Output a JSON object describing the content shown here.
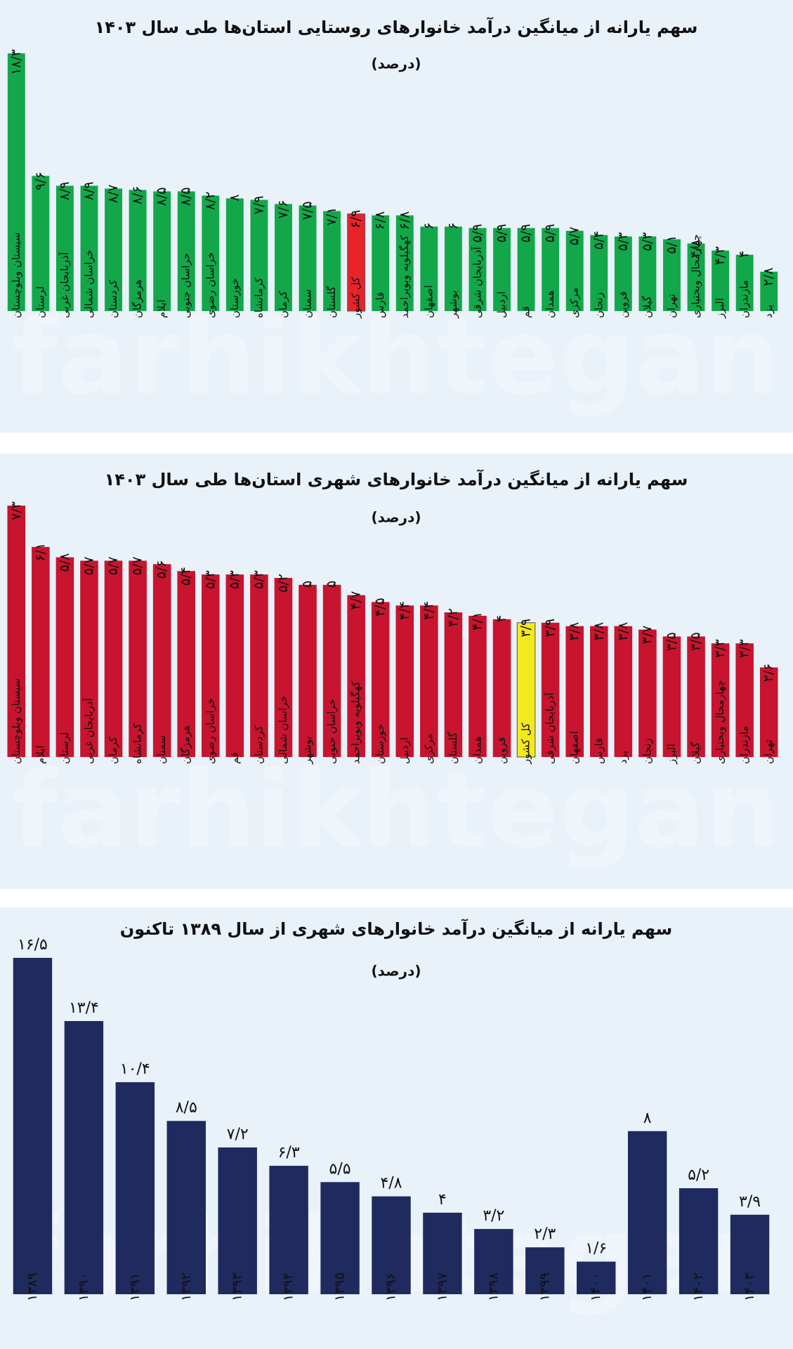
{
  "watermark": "farhikhtegan",
  "chart_data": [
    {
      "type": "bar",
      "title": "سهم یارانه از میانگین درآمد خانوارهای روستایی استان‌ها طی سال ۱۴۰۳",
      "subtitle": "(درصد)",
      "categories": [
        "سیستان وبلوچستان",
        "لرستان",
        "آذربایجان غربی",
        "خراسان شمالی",
        "کردستان",
        "هرمزگان",
        "ایلام",
        "خراسان جنوبی",
        "خراسان رضوی",
        "خوزستان",
        "کرمانشاه",
        "کرمان",
        "سمنان",
        "گلستان",
        "کل کشور",
        "فارس",
        "کهگیلویه وبویراحمد",
        "اصفهان",
        "بوشهر",
        "آذربایجان شرقی",
        "اردبیل",
        "قم",
        "همدان",
        "مرکزی",
        "زنجان",
        "قزوین",
        "گیلان",
        "تهران",
        "چهارمحال وبختیاری",
        "البرز",
        "مازندران",
        "یزد"
      ],
      "values": [
        18.3,
        9.6,
        8.9,
        8.9,
        8.7,
        8.6,
        8.5,
        8.5,
        8.2,
        8,
        7.9,
        7.6,
        7.5,
        7.1,
        6.9,
        6.8,
        6.8,
        6,
        6,
        5.9,
        5.9,
        5.9,
        5.9,
        5.7,
        5.4,
        5.3,
        5.3,
        5.1,
        4.8,
        4.3,
        4,
        2.8
      ],
      "value_labels": [
        "۱۸/۳",
        "۹/۶",
        "۸/۹",
        "۸/۹",
        "۸/۷",
        "۸/۶",
        "۸/۵",
        "۸/۵",
        "۸/۲",
        "۸",
        "۷/۹",
        "۷/۶",
        "۷/۵",
        "۷/۱",
        "۶/۹",
        "۶/۸",
        "۶/۸",
        "۶",
        "۶",
        "۵/۹",
        "۵/۹",
        "۵/۹",
        "۵/۹",
        "۵/۷",
        "۵/۴",
        "۵/۳",
        "۵/۳",
        "۵/۱",
        "۴/۸",
        "۴/۳",
        "۴",
        "۲/۸"
      ],
      "colors": [
        "#12a84a",
        "#12a84a",
        "#12a84a",
        "#12a84a",
        "#12a84a",
        "#12a84a",
        "#12a84a",
        "#12a84a",
        "#12a84a",
        "#12a84a",
        "#12a84a",
        "#12a84a",
        "#12a84a",
        "#12a84a",
        "#e8232a",
        "#12a84a",
        "#12a84a",
        "#12a84a",
        "#12a84a",
        "#12a84a",
        "#12a84a",
        "#12a84a",
        "#12a84a",
        "#12a84a",
        "#12a84a",
        "#12a84a",
        "#12a84a",
        "#12a84a",
        "#12a84a",
        "#12a84a",
        "#12a84a",
        "#12a84a"
      ]
    },
    {
      "type": "bar",
      "title": "سهم یارانه از میانگین درآمد خانوارهای شهری استان‌ها طی سال ۱۴۰۳",
      "subtitle": "(درصد)",
      "categories": [
        "سیستان وبلوچستان",
        "ایلام",
        "لرستان",
        "آذربایجان غربی",
        "کرمان",
        "کرمانشاه",
        "سمنان",
        "هرمزگان",
        "خراسان رضوی",
        "قم",
        "کردستان",
        "خراسان شمالی",
        "بوشهر",
        "خراسان جنوبی",
        "کهگیلویه وبویراحمد",
        "خوزستان",
        "اردبیل",
        "مرکزی",
        "گلستان",
        "همدان",
        "قزوین",
        "کل کشور",
        "آذربایجان شرقی",
        "اصفهان",
        "فارس",
        "یزد",
        "زنجان",
        "البرز",
        "گیلان",
        "چهارمحال وبختیاری",
        "مازندران",
        "تهران"
      ],
      "values": [
        7.3,
        6.1,
        5.8,
        5.7,
        5.7,
        5.7,
        5.6,
        5.4,
        5.3,
        5.3,
        5.3,
        5.2,
        5,
        5,
        4.7,
        4.5,
        4.4,
        4.4,
        4.2,
        4.1,
        4,
        3.9,
        3.9,
        3.8,
        3.8,
        3.8,
        3.7,
        3.5,
        3.5,
        3.3,
        3.3,
        2.6
      ],
      "value_labels": [
        "۷/۳",
        "۶/۱",
        "۵/۸",
        "۵/۷",
        "۵/۷",
        "۵/۷",
        "۵/۶",
        "۵/۴",
        "۵/۳",
        "۵/۳",
        "۵/۳",
        "۵/۲",
        "۵",
        "۵",
        "۴/۷",
        "۴/۵",
        "۴/۴",
        "۴/۴",
        "۴/۲",
        "۴/۱",
        "۴",
        "۳/۹",
        "۳/۹",
        "۳/۸",
        "۳/۸",
        "۳/۸",
        "۳/۷",
        "۳/۵",
        "۳/۵",
        "۳/۳",
        "۳/۳",
        "۲/۶"
      ],
      "colors": [
        "#c8142e",
        "#c8142e",
        "#c8142e",
        "#c8142e",
        "#c8142e",
        "#c8142e",
        "#c8142e",
        "#c8142e",
        "#c8142e",
        "#c8142e",
        "#c8142e",
        "#c8142e",
        "#c8142e",
        "#c8142e",
        "#c8142e",
        "#c8142e",
        "#c8142e",
        "#c8142e",
        "#c8142e",
        "#c8142e",
        "#c8142e",
        "#f4e91c",
        "#c8142e",
        "#c8142e",
        "#c8142e",
        "#c8142e",
        "#c8142e",
        "#c8142e",
        "#c8142e",
        "#c8142e",
        "#c8142e",
        "#c8142e"
      ]
    },
    {
      "type": "bar",
      "title": "سهم یارانه از میانگین درآمد خانوارهای شهری از سال ۱۳۸۹ تاکنون",
      "subtitle": "(درصد)",
      "categories": [
        "۱۳۸۹",
        "۱۳۹۰",
        "۱۳۹۱",
        "۱۳۹۲",
        "۱۳۹۳",
        "۱۳۹۴",
        "۱۳۹۵",
        "۱۳۹۶",
        "۱۳۹۷",
        "۱۳۹۸",
        "۱۳۹۹",
        "۱۴۰۰",
        "۱۴۰۱",
        "۱۴۰۲",
        "۱۴۰۳"
      ],
      "values": [
        16.5,
        13.4,
        10.4,
        8.5,
        7.2,
        6.3,
        5.5,
        4.8,
        4,
        3.2,
        2.3,
        1.6,
        8,
        5.2,
        3.9
      ],
      "value_labels": [
        "۱۶/۵",
        "۱۳/۴",
        "۱۰/۴",
        "۸/۵",
        "۷/۲",
        "۶/۳",
        "۵/۵",
        "۴/۸",
        "۴",
        "۳/۲",
        "۲/۳",
        "۱/۶",
        "۸",
        "۵/۲",
        "۳/۹"
      ],
      "colors": [
        "#1f2a5e",
        "#1f2a5e",
        "#1f2a5e",
        "#1f2a5e",
        "#1f2a5e",
        "#1f2a5e",
        "#1f2a5e",
        "#1f2a5e",
        "#1f2a5e",
        "#1f2a5e",
        "#1f2a5e",
        "#1f2a5e",
        "#1f2a5e",
        "#1f2a5e",
        "#1f2a5e"
      ]
    }
  ]
}
